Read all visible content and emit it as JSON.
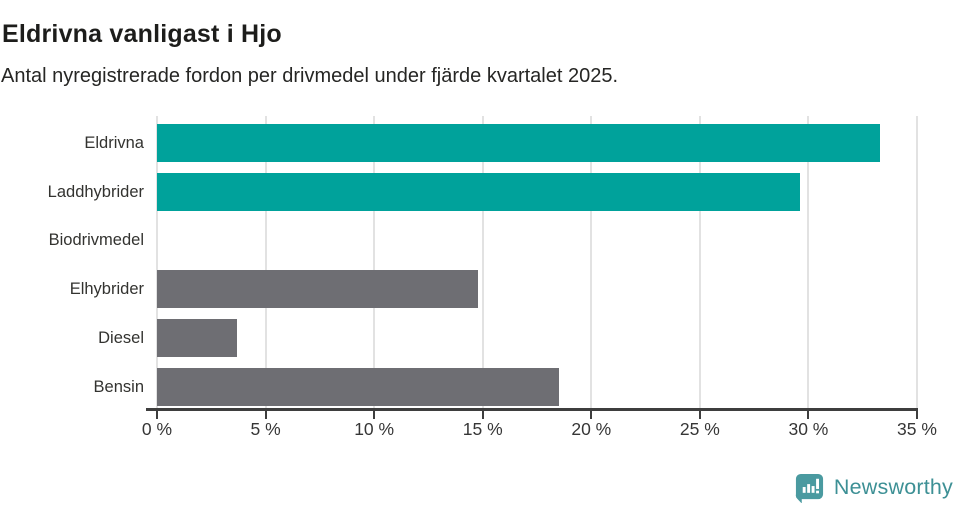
{
  "header": {
    "title": "Eldrivna vanligast i Hjo",
    "subtitle": "Antal nyregistrerade fordon per drivmedel under fjärde kvartalet 2025."
  },
  "chart_data": {
    "type": "bar",
    "orientation": "horizontal",
    "title": "Eldrivna vanligast i Hjo",
    "subtitle": "Antal nyregistrerade fordon per drivmedel under fjärde kvartalet 2025.",
    "categories": [
      "Eldrivna",
      "Laddhybrider",
      "Biodrivmedel",
      "Elhybrider",
      "Diesel",
      "Bensin"
    ],
    "values": [
      33.3,
      29.6,
      0,
      14.8,
      3.7,
      18.5
    ],
    "unit": "%",
    "xlim": [
      0,
      35
    ],
    "x_ticks": [
      "0 %",
      "5 %",
      "10 %",
      "15 %",
      "20 %",
      "25 %",
      "30 %",
      "35 %"
    ],
    "x_tick_values": [
      0,
      5,
      10,
      15,
      20,
      25,
      30,
      35
    ],
    "bar_colors": [
      "#00a29b",
      "#00a29b",
      "#6e6e73",
      "#6e6e73",
      "#6e6e73",
      "#6e6e73"
    ],
    "grid": true,
    "gridline_color": "#e2e2e2",
    "axis_color": "#3e3e3e",
    "legend": "none"
  },
  "colors": {
    "accent_teal": "#00a29b",
    "neutral_gray": "#6e6e73",
    "logo_teal": "#4a9aa0"
  },
  "logo": {
    "icon": "newsworthy-speech-bubble-barchart-icon",
    "text": "Newsworthy"
  }
}
